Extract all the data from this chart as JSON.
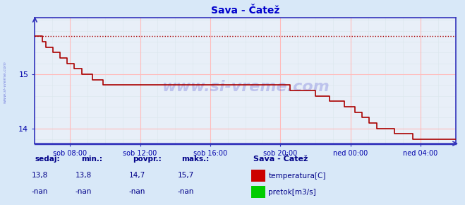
{
  "title": "Sava - Čatež",
  "bg_color": "#d8e8f8",
  "plot_bg_color": "#e8eff8",
  "grid_color_major": "#ffbbbb",
  "grid_color_minor": "#dde8ee",
  "line_color": "#aa0000",
  "axis_color": "#3333bb",
  "title_color": "#0000cc",
  "tick_color": "#0000aa",
  "text_color": "#000088",
  "watermark": "www.si-vreme.com",
  "watermark_color": "#0000bb",
  "watermark_alpha": 0.18,
  "sidebar_label": "www.si-vreme.com",
  "xticklabels": [
    "sob 08:00",
    "sob 12:00",
    "sob 16:00",
    "sob 20:00",
    "ned 00:00",
    "ned 04:00"
  ],
  "xtick_positions": [
    24,
    72,
    120,
    168,
    216,
    264
  ],
  "yticks": [
    14,
    15
  ],
  "ymin": 13.72,
  "ymax": 16.05,
  "xmin": 0,
  "xmax": 288,
  "max_line_y": 15.7,
  "legend_title": "Sava - Čatež",
  "legend_items": [
    {
      "label": "temperatura[C]",
      "color": "#cc0000"
    },
    {
      "label": "pretok[m3/s]",
      "color": "#00cc00"
    }
  ],
  "stats_headers": [
    "sedaj:",
    "min.:",
    "povpr.:",
    "maks.:"
  ],
  "stats_temp": [
    "13,8",
    "13,8",
    "14,7",
    "15,7"
  ],
  "stats_flow": [
    "-nan",
    "-nan",
    "-nan",
    "-nan"
  ],
  "temp_data": [
    15.7,
    15.7,
    15.6,
    15.5,
    15.5,
    15.4,
    15.4,
    15.3,
    15.3,
    15.2,
    15.2,
    15.1,
    15.1,
    15.0,
    15.0,
    15.0,
    14.9,
    14.9,
    14.9,
    14.8,
    14.8,
    14.8,
    14.8,
    14.8,
    14.8,
    14.8,
    14.8,
    14.8,
    14.8,
    14.8,
    14.8,
    14.8,
    14.8,
    14.8,
    14.8,
    14.8,
    14.8,
    14.8,
    14.8,
    14.8,
    14.8,
    14.8,
    14.8,
    14.8,
    14.8,
    14.8,
    14.8,
    14.8,
    14.8,
    14.8,
    14.8,
    14.8,
    14.8,
    14.8,
    14.8,
    14.8,
    14.8,
    14.8,
    14.8,
    14.8,
    14.8,
    14.8,
    14.8,
    14.8,
    14.8,
    14.8,
    14.8,
    14.8,
    14.8,
    14.8,
    14.8,
    14.7,
    14.7,
    14.7,
    14.7,
    14.7,
    14.7,
    14.7,
    14.6,
    14.6,
    14.6,
    14.6,
    14.5,
    14.5,
    14.5,
    14.5,
    14.4,
    14.4,
    14.4,
    14.3,
    14.3,
    14.2,
    14.2,
    14.1,
    14.1,
    14.0,
    14.0,
    14.0,
    14.0,
    14.0,
    13.9,
    13.9,
    13.9,
    13.9,
    13.9,
    13.8,
    13.8,
    13.8,
    13.8,
    13.8,
    13.8,
    13.8,
    13.8,
    13.8,
    13.8,
    13.8,
    13.8,
    13.8
  ]
}
